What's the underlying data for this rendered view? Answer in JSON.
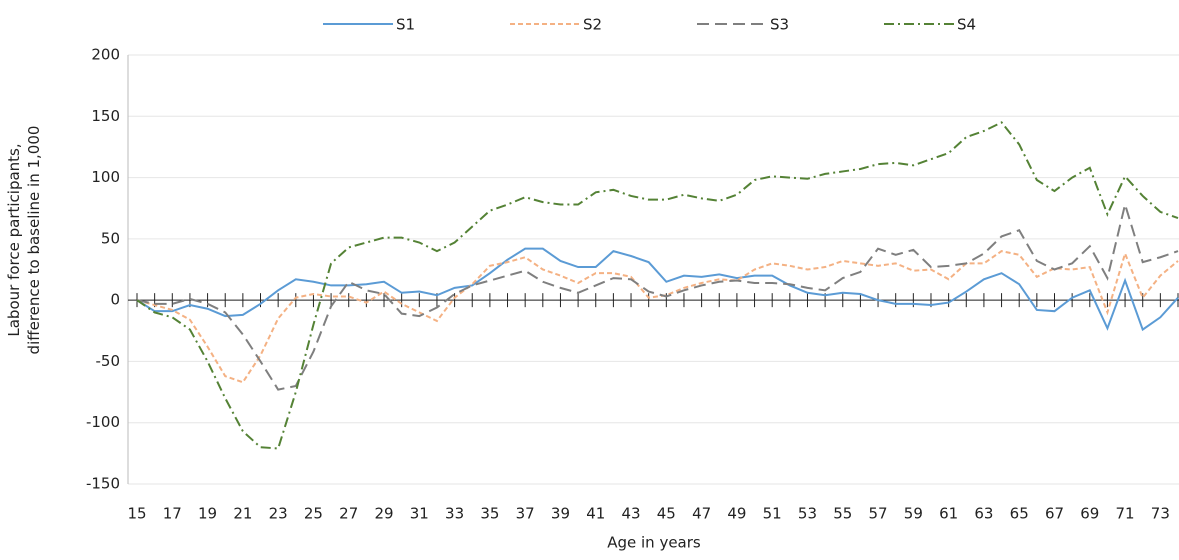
{
  "chart_data": {
    "type": "line",
    "x_label": "Age in years",
    "y_label": "Labour force participants, difference to baseline in 1,000",
    "categories": [
      "15",
      null,
      "17",
      null,
      "19",
      null,
      "21",
      null,
      "23",
      null,
      "25",
      null,
      "27",
      null,
      "29",
      null,
      "31",
      null,
      "33",
      null,
      "35",
      null,
      "37",
      null,
      "39",
      null,
      "41",
      null,
      "43",
      null,
      "45",
      null,
      "47",
      null,
      "49",
      null,
      "51",
      null,
      "53",
      null,
      "55",
      null,
      "57",
      null,
      "59",
      null,
      "61",
      null,
      "63",
      null,
      "65",
      null,
      "67",
      null,
      "69",
      null,
      "71",
      null,
      "73",
      null
    ],
    "series": [
      {
        "name": "S1",
        "color": "#5b9bd5",
        "dash": "solid",
        "values": [
          0,
          -9,
          -9,
          -4,
          -7,
          -13,
          -12,
          -3,
          8,
          17,
          15,
          12,
          12,
          13,
          15,
          6,
          7,
          4,
          10,
          12,
          22,
          33,
          42,
          42,
          32,
          27,
          27,
          40,
          36,
          31,
          15,
          20,
          19,
          21,
          18,
          20,
          20,
          12,
          6,
          4,
          6,
          5,
          0,
          -3,
          -3,
          -4,
          -2,
          7,
          17,
          22,
          13,
          -8,
          -9,
          2,
          8,
          -23,
          16,
          -24,
          -14,
          2
        ]
      },
      {
        "name": "S2",
        "color": "#f4b183",
        "dash": "short",
        "values": [
          0,
          -4,
          -8,
          -16,
          -38,
          -62,
          -67,
          -45,
          -15,
          2,
          5,
          3,
          3,
          -2,
          7,
          -3,
          -10,
          -17,
          2,
          13,
          28,
          31,
          35,
          25,
          20,
          14,
          22,
          22,
          19,
          2,
          4,
          10,
          14,
          17,
          16,
          25,
          30,
          28,
          25,
          27,
          32,
          30,
          28,
          30,
          24,
          25,
          17,
          30,
          30,
          40,
          37,
          19,
          26,
          25,
          27,
          -10,
          38,
          2,
          20,
          32
        ]
      },
      {
        "name": "S3",
        "color": "#7f7f7f",
        "dash": "long",
        "values": [
          0,
          -3,
          -3,
          1,
          -3,
          -10,
          -28,
          -50,
          -73,
          -70,
          -42,
          -5,
          15,
          8,
          5,
          -11,
          -13,
          -6,
          5,
          12,
          16,
          20,
          24,
          15,
          10,
          6,
          12,
          18,
          17,
          7,
          3,
          8,
          12,
          15,
          16,
          14,
          14,
          13,
          10,
          8,
          18,
          23,
          42,
          37,
          41,
          27,
          28,
          30,
          38,
          52,
          57,
          32,
          25,
          30,
          44,
          18,
          78,
          31,
          35,
          40
        ]
      },
      {
        "name": "S4",
        "color": "#548235",
        "dash": "dashdot",
        "values": [
          0,
          -10,
          -14,
          -24,
          -50,
          -80,
          -107,
          -120,
          -121,
          -75,
          -20,
          30,
          43,
          47,
          51,
          51,
          47,
          40,
          47,
          60,
          73,
          78,
          84,
          80,
          78,
          78,
          88,
          90,
          85,
          82,
          82,
          86,
          83,
          81,
          86,
          98,
          101,
          100,
          99,
          103,
          105,
          107,
          111,
          112,
          110,
          115,
          120,
          133,
          138,
          145,
          127,
          98,
          89,
          100,
          108,
          70,
          101,
          85,
          72,
          67
        ]
      }
    ],
    "ylim": [
      -150,
      200
    ],
    "yticks": [
      -150,
      -100,
      -50,
      0,
      50,
      100,
      150,
      200
    ],
    "grid": true,
    "legend": "top"
  }
}
